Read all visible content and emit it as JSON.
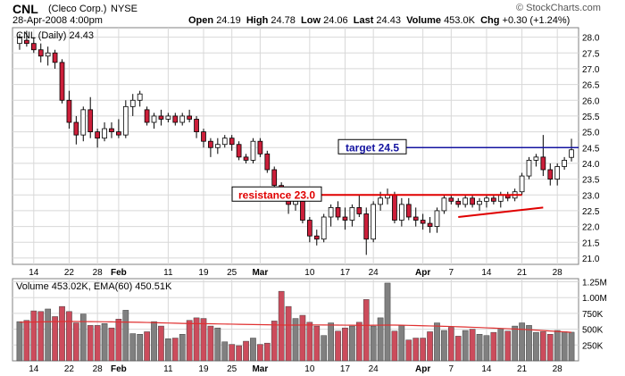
{
  "header": {
    "symbol": "CNL",
    "name": "(Cleco Corp.)",
    "exchange": "NYSE",
    "datetime": "28-Apr-2008 4:00pm",
    "watermark": "© StockCharts.com",
    "open_label": "Open",
    "open": "24.19",
    "high_label": "High",
    "high": "24.78",
    "low_label": "Low",
    "low": "24.06",
    "last_label": "Last",
    "last": "24.43",
    "volume_label": "Volume",
    "volume": "453.0K",
    "chg_label": "Chg",
    "chg": "+0.30 (+1.24%)"
  },
  "price_legend": "CNL (Daily) 24.43",
  "volume_legend": "Volume 453.02K, EMA(60) 450.51K",
  "colors": {
    "up": "#ffffff",
    "down": "#cc1f3a",
    "wick": "#000000",
    "resistance": "#e00000",
    "target": "#1414a0",
    "vol_up": "#808080",
    "vol_down": "#cc4c5c",
    "ema": "#e03030",
    "grid": "#d8d8d8"
  },
  "chart_data": [
    {
      "type": "candlestick",
      "title": "CNL (Daily) 24.43",
      "ylim": [
        20.8,
        28.3
      ],
      "yticks": [
        "21.0",
        "21.5",
        "22.0",
        "22.5",
        "23.0",
        "23.5",
        "24.0",
        "24.5",
        "25.0",
        "25.5",
        "26.0",
        "26.5",
        "27.0",
        "27.5",
        "28.0"
      ],
      "x_tick_labels": [
        {
          "label": "14",
          "bold": false,
          "index": 2
        },
        {
          "label": "22",
          "bold": false,
          "index": 7
        },
        {
          "label": "28",
          "bold": false,
          "index": 11
        },
        {
          "label": "Feb",
          "bold": true,
          "index": 14
        },
        {
          "label": "11",
          "bold": false,
          "index": 21
        },
        {
          "label": "19",
          "bold": false,
          "index": 26
        },
        {
          "label": "25",
          "bold": false,
          "index": 30
        },
        {
          "label": "Mar",
          "bold": true,
          "index": 34
        },
        {
          "label": "10",
          "bold": false,
          "index": 41
        },
        {
          "label": "17",
          "bold": false,
          "index": 46
        },
        {
          "label": "24",
          "bold": false,
          "index": 50
        },
        {
          "label": "Apr",
          "bold": true,
          "index": 57
        },
        {
          "label": "7",
          "bold": false,
          "index": 61
        },
        {
          "label": "14",
          "bold": false,
          "index": 66
        },
        {
          "label": "21",
          "bold": false,
          "index": 71
        },
        {
          "label": "28",
          "bold": false,
          "index": 76
        }
      ],
      "ohlc": [
        [
          27.8,
          28.1,
          27.6,
          28.0
        ],
        [
          27.9,
          28.2,
          27.7,
          27.8
        ],
        [
          27.8,
          28.0,
          27.5,
          27.6
        ],
        [
          27.6,
          27.8,
          27.2,
          27.4
        ],
        [
          27.4,
          27.7,
          27.1,
          27.5
        ],
        [
          27.5,
          27.6,
          27.0,
          27.2
        ],
        [
          27.2,
          27.3,
          25.9,
          26.0
        ],
        [
          26.0,
          26.3,
          25.1,
          25.3
        ],
        [
          25.3,
          25.5,
          24.6,
          24.9
        ],
        [
          24.9,
          25.8,
          24.7,
          25.7
        ],
        [
          25.7,
          26.1,
          24.8,
          25.0
        ],
        [
          25.0,
          25.1,
          24.5,
          24.8
        ],
        [
          24.8,
          25.3,
          24.7,
          25.1
        ],
        [
          25.1,
          25.3,
          24.8,
          25.0
        ],
        [
          25.0,
          25.4,
          24.8,
          24.9
        ],
        [
          24.9,
          26.0,
          24.8,
          25.8
        ],
        [
          25.8,
          26.2,
          25.5,
          26.0
        ],
        [
          26.0,
          26.3,
          25.8,
          26.2
        ],
        [
          25.7,
          25.8,
          25.2,
          25.3
        ],
        [
          25.3,
          25.6,
          25.1,
          25.5
        ],
        [
          25.5,
          25.7,
          25.2,
          25.4
        ],
        [
          25.4,
          25.6,
          25.3,
          25.5
        ],
        [
          25.5,
          25.6,
          25.2,
          25.3
        ],
        [
          25.3,
          25.6,
          25.2,
          25.5
        ],
        [
          25.5,
          25.7,
          25.3,
          25.4
        ],
        [
          25.4,
          25.5,
          24.8,
          25.0
        ],
        [
          25.0,
          25.1,
          24.5,
          24.7
        ],
        [
          24.7,
          24.8,
          24.2,
          24.5
        ],
        [
          24.5,
          24.8,
          24.3,
          24.6
        ],
        [
          24.6,
          24.9,
          24.5,
          24.8
        ],
        [
          24.8,
          24.9,
          24.4,
          24.6
        ],
        [
          24.6,
          24.7,
          24.1,
          24.2
        ],
        [
          24.2,
          24.3,
          24.0,
          24.1
        ],
        [
          24.1,
          24.8,
          24.0,
          24.7
        ],
        [
          24.7,
          24.8,
          24.2,
          24.3
        ],
        [
          24.3,
          24.4,
          23.7,
          23.8
        ],
        [
          23.8,
          23.9,
          23.1,
          23.3
        ],
        [
          23.3,
          23.4,
          22.8,
          22.9
        ],
        [
          22.9,
          23.0,
          22.4,
          22.7
        ],
        [
          22.7,
          22.9,
          22.5,
          22.8
        ],
        [
          22.8,
          22.9,
          22.1,
          22.2
        ],
        [
          22.2,
          22.3,
          21.5,
          21.7
        ],
        [
          21.7,
          21.9,
          21.4,
          21.6
        ],
        [
          21.6,
          22.4,
          21.5,
          22.3
        ],
        [
          22.3,
          22.7,
          22.0,
          22.6
        ],
        [
          22.6,
          22.8,
          22.2,
          22.3
        ],
        [
          22.3,
          22.6,
          21.9,
          22.2
        ],
        [
          22.2,
          22.7,
          22.0,
          22.6
        ],
        [
          22.6,
          23.0,
          22.3,
          22.4
        ],
        [
          22.4,
          22.6,
          21.1,
          21.6
        ],
        [
          21.6,
          22.8,
          21.5,
          22.7
        ],
        [
          22.7,
          23.1,
          22.5,
          22.9
        ],
        [
          22.9,
          23.2,
          22.7,
          23.0
        ],
        [
          23.0,
          23.1,
          22.1,
          22.2
        ],
        [
          22.2,
          22.9,
          22.0,
          22.7
        ],
        [
          22.7,
          22.9,
          22.2,
          22.3
        ],
        [
          22.3,
          22.6,
          22.0,
          22.2
        ],
        [
          22.2,
          22.4,
          21.9,
          22.1
        ],
        [
          22.1,
          22.3,
          21.8,
          22.0
        ],
        [
          22.0,
          22.6,
          21.8,
          22.5
        ],
        [
          22.5,
          23.0,
          22.4,
          22.9
        ],
        [
          22.9,
          23.0,
          22.7,
          22.8
        ],
        [
          22.8,
          22.9,
          22.6,
          22.7
        ],
        [
          22.7,
          23.0,
          22.6,
          22.9
        ],
        [
          22.9,
          23.0,
          22.6,
          22.7
        ],
        [
          22.7,
          22.9,
          22.5,
          22.8
        ],
        [
          22.8,
          23.0,
          22.6,
          22.9
        ],
        [
          22.9,
          23.0,
          22.7,
          22.8
        ],
        [
          22.8,
          23.1,
          22.6,
          23.0
        ],
        [
          23.0,
          23.1,
          22.8,
          22.9
        ],
        [
          22.9,
          23.2,
          22.8,
          23.1
        ],
        [
          23.1,
          23.7,
          23.0,
          23.6
        ],
        [
          23.6,
          24.2,
          23.5,
          24.1
        ],
        [
          24.1,
          24.3,
          23.9,
          24.2
        ],
        [
          24.2,
          24.9,
          23.6,
          23.8
        ],
        [
          23.8,
          24.0,
          23.3,
          23.5
        ],
        [
          23.5,
          24.0,
          23.3,
          23.9
        ],
        [
          23.9,
          24.2,
          23.8,
          24.1
        ],
        [
          24.19,
          24.78,
          24.06,
          24.43
        ]
      ]
    },
    {
      "type": "bar",
      "title": "Volume 453.02K, EMA(60) 450.51K",
      "ylim": [
        0,
        1300000
      ],
      "yticks": [
        "250K",
        "500K",
        "750K",
        "1.00M",
        "1.25M"
      ],
      "volume": [
        620000,
        640000,
        790000,
        780000,
        820000,
        700000,
        860000,
        780000,
        600000,
        740000,
        560000,
        560000,
        590000,
        520000,
        660000,
        800000,
        430000,
        420000,
        460000,
        620000,
        550000,
        350000,
        360000,
        420000,
        640000,
        680000,
        670000,
        550000,
        520000,
        300000,
        260000,
        240000,
        310000,
        360000,
        260000,
        280000,
        630000,
        1100000,
        860000,
        670000,
        720000,
        610000,
        550000,
        400000,
        600000,
        470000,
        520000,
        550000,
        610000,
        970000,
        550000,
        680000,
        1230000,
        470000,
        560000,
        330000,
        360000,
        360000,
        460000,
        600000,
        480000,
        530000,
        390000,
        480000,
        500000,
        420000,
        400000,
        450000,
        500000,
        470000,
        550000,
        600000,
        560000,
        450000,
        460000,
        420000,
        480000,
        460000,
        453020
      ],
      "ema": [
        610000,
        612000,
        614000,
        616000,
        618000,
        620000,
        622000,
        623000,
        622000,
        621000,
        620000,
        619000,
        617000,
        616000,
        614000,
        613000,
        611000,
        609000,
        607000,
        604000,
        601000,
        598000,
        595000,
        592000,
        590000,
        588000,
        587000,
        586000,
        584000,
        582000,
        580000,
        578000,
        576000,
        574000,
        572000,
        570000,
        568000,
        566000,
        565000,
        565000,
        566000,
        567000,
        568000,
        567000,
        566000,
        565000,
        564000,
        563000,
        562000,
        562000,
        563000,
        564000,
        566000,
        565000,
        563000,
        561000,
        558000,
        555000,
        552000,
        549000,
        546000,
        543000,
        539000,
        535000,
        531000,
        527000,
        522000,
        518000,
        513000,
        508000,
        503000,
        498000,
        492000,
        486000,
        479000,
        472000,
        465000,
        458000,
        450510
      ]
    }
  ],
  "annotations": {
    "resistance": {
      "label": "resistance 23.0",
      "price": 23.0,
      "start_index": 32
    },
    "target": {
      "label": "target 24.5",
      "price": 24.5,
      "start_index": 53
    },
    "trendline": {
      "from": [
        62,
        22.3
      ],
      "to": [
        74,
        22.6
      ]
    }
  }
}
